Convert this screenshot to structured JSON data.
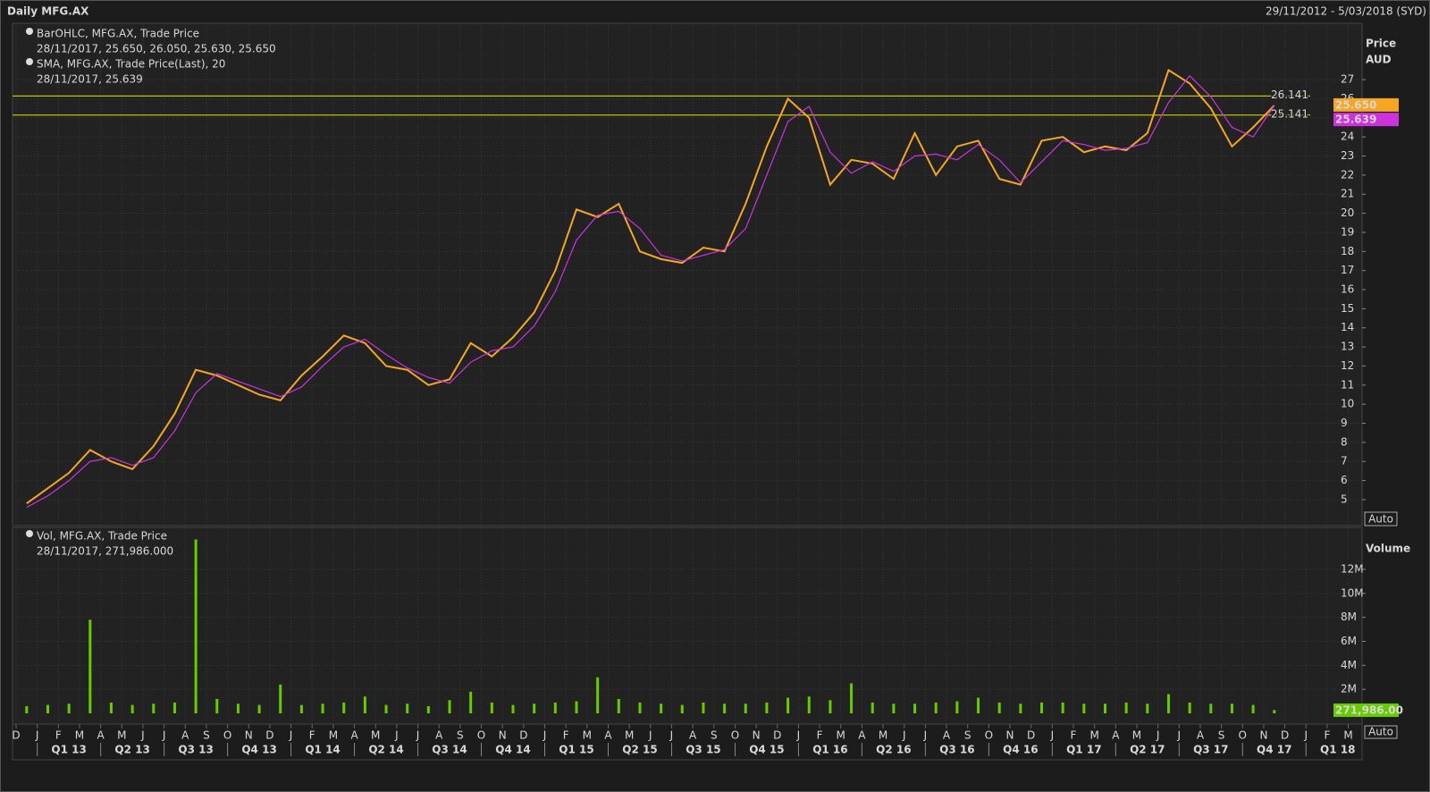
{
  "header": {
    "title": "Daily MFG.AX",
    "range": "29/11/2012 - 5/03/2018 (SYD)"
  },
  "chart_data": [
    {
      "type": "line",
      "y_axis_title": "Price",
      "y_axis_unit": "AUD",
      "scale_mode": "Auto",
      "categories": [
        "D",
        "J",
        "F",
        "M",
        "A",
        "M",
        "J",
        "J",
        "A",
        "S",
        "O",
        "N",
        "D",
        "J",
        "F",
        "M",
        "A",
        "M",
        "J",
        "J",
        "A",
        "S",
        "O",
        "N",
        "D",
        "J",
        "F",
        "M",
        "A",
        "M",
        "J",
        "J",
        "A",
        "S",
        "O",
        "N",
        "D",
        "J",
        "F",
        "M",
        "A",
        "M",
        "J",
        "J",
        "A",
        "S",
        "O",
        "N",
        "D",
        "J",
        "F",
        "M",
        "A",
        "M",
        "J",
        "J",
        "A",
        "S",
        "O",
        "N",
        "D",
        "J",
        "F",
        "M"
      ],
      "quarters": [
        "Q1 13",
        "Q2 13",
        "Q3 13",
        "Q4 13",
        "Q1 14",
        "Q2 14",
        "Q3 14",
        "Q4 14",
        "Q1 15",
        "Q2 15",
        "Q3 15",
        "Q4 15",
        "Q1 16",
        "Q2 16",
        "Q3 16",
        "Q4 16",
        "Q1 17",
        "Q2 17",
        "Q3 17",
        "Q4 17",
        "Q1 18"
      ],
      "series": [
        {
          "name": "BarOHLC, MFG.AX, Trade Price",
          "detail": "28/11/2017, 25.650, 26.050, 25.630, 25.650",
          "last_label": "25.650",
          "color": "#f5a623",
          "values": [
            4.8,
            5.6,
            6.4,
            7.6,
            7.0,
            6.6,
            7.8,
            9.5,
            11.8,
            11.5,
            11.0,
            10.5,
            10.2,
            11.5,
            12.5,
            13.6,
            13.2,
            12.0,
            11.8,
            11.0,
            11.3,
            13.2,
            12.5,
            13.5,
            14.8,
            17.0,
            20.2,
            19.8,
            20.5,
            18.0,
            17.6,
            17.4,
            18.2,
            18.0,
            20.5,
            23.5,
            26.0,
            25.0,
            21.5,
            22.8,
            22.6,
            21.8,
            24.2,
            22.0,
            23.5,
            23.8,
            21.8,
            21.5,
            23.8,
            24.0,
            23.2,
            23.5,
            23.3,
            24.2,
            27.5,
            26.8,
            25.5,
            23.5,
            24.5,
            25.65,
            null,
            null,
            null,
            null
          ]
        },
        {
          "name": "SMA, MFG.AX, Trade Price(Last),  20",
          "detail": "28/11/2017, 25.639",
          "last_label": "25.639",
          "color": "#cc33dd",
          "values": [
            4.6,
            5.2,
            6.0,
            7.0,
            7.2,
            6.8,
            7.2,
            8.6,
            10.6,
            11.6,
            11.2,
            10.8,
            10.4,
            10.9,
            12.0,
            13.0,
            13.4,
            12.6,
            11.9,
            11.4,
            11.1,
            12.2,
            12.8,
            13.0,
            14.1,
            15.9,
            18.6,
            19.9,
            20.1,
            19.2,
            17.8,
            17.5,
            17.8,
            18.1,
            19.2,
            22.0,
            24.8,
            25.6,
            23.2,
            22.1,
            22.7,
            22.2,
            23.0,
            23.1,
            22.8,
            23.6,
            22.8,
            21.6,
            22.7,
            23.8,
            23.6,
            23.3,
            23.4,
            23.7,
            25.8,
            27.2,
            26.1,
            24.5,
            24.0,
            25.639,
            null,
            null,
            null,
            null
          ]
        }
      ],
      "hlines": [
        26.141,
        25.141
      ],
      "hline_color": "#e6e600",
      "ylim": [
        3.64,
        29.86
      ],
      "yticks": [
        5,
        6,
        7,
        8,
        9,
        10,
        11,
        12,
        13,
        14,
        15,
        16,
        17,
        18,
        19,
        20,
        21,
        22,
        23,
        24,
        25,
        26,
        27
      ],
      "grid": true
    },
    {
      "type": "bar",
      "y_axis_title": "Volume",
      "scale_mode": "Auto",
      "series": [
        {
          "name": "Vol, MFG.AX, Trade Price",
          "detail": "28/11/2017, 271,986.000",
          "last_label": "271,986.00",
          "color": "#66cc00",
          "values": [
            600000,
            700000,
            800000,
            7800000,
            900000,
            700000,
            800000,
            900000,
            14500000,
            1200000,
            800000,
            700000,
            2400000,
            700000,
            800000,
            900000,
            1400000,
            700000,
            800000,
            600000,
            1100000,
            1800000,
            900000,
            700000,
            800000,
            900000,
            1000000,
            3000000,
            1200000,
            900000,
            800000,
            700000,
            900000,
            800000,
            800000,
            900000,
            1300000,
            1400000,
            1100000,
            2500000,
            900000,
            800000,
            800000,
            900000,
            1000000,
            1300000,
            900000,
            800000,
            900000,
            900000,
            800000,
            800000,
            900000,
            800000,
            1600000,
            900000,
            800000,
            800000,
            700000,
            271986,
            null,
            null,
            null,
            null
          ]
        }
      ],
      "ylim": [
        0,
        15500000
      ],
      "yticks": [
        {
          "value": 2000000,
          "label": "2M"
        },
        {
          "value": 4000000,
          "label": "4M"
        },
        {
          "value": 6000000,
          "label": "6M"
        },
        {
          "value": 8000000,
          "label": "8M"
        },
        {
          "value": 10000000,
          "label": "10M"
        },
        {
          "value": 12000000,
          "label": "12M"
        }
      ],
      "grid": true
    }
  ]
}
